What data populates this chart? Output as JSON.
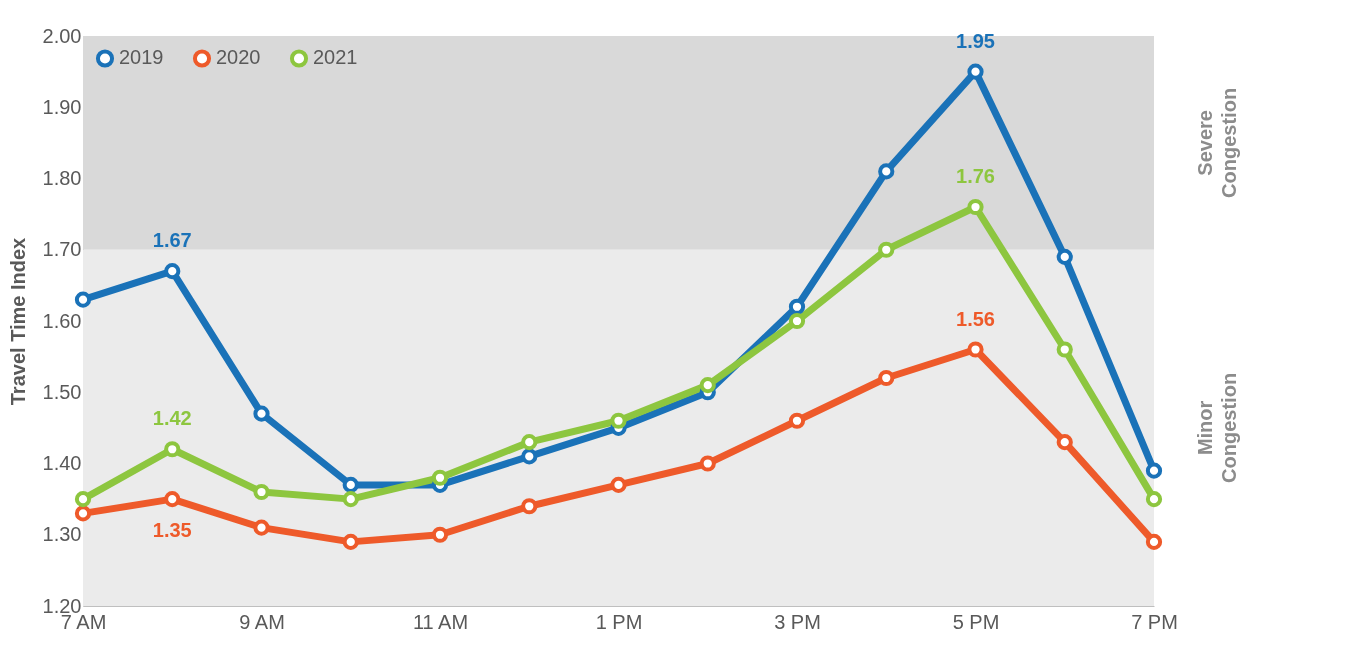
{
  "chart_data": {
    "type": "line",
    "ylabel": "Travel Time Index",
    "categories": [
      "7 AM",
      null,
      "9 AM",
      null,
      "11 AM",
      null,
      "1 PM",
      null,
      "3 PM",
      null,
      "5 PM",
      null,
      "7 PM"
    ],
    "ylim": [
      1.2,
      2.0
    ],
    "yticks": [
      {
        "value": 1.2,
        "label": "1.20"
      },
      {
        "value": 1.3,
        "label": "1.30"
      },
      {
        "value": 1.4,
        "label": "1.40"
      },
      {
        "value": 1.5,
        "label": "1.50"
      },
      {
        "value": 1.6,
        "label": "1.60"
      },
      {
        "value": 1.7,
        "label": "1.70"
      },
      {
        "value": 1.8,
        "label": "1.80"
      },
      {
        "value": 1.9,
        "label": "1.90"
      },
      {
        "value": 2.0,
        "label": "2.00"
      }
    ],
    "series": [
      {
        "name": "2019",
        "color": "#1a72b8",
        "values": [
          1.63,
          1.67,
          1.47,
          1.37,
          1.37,
          1.41,
          1.45,
          1.5,
          1.62,
          1.81,
          1.95,
          1.69,
          1.39
        ],
        "value_labels": [
          null,
          "1.67",
          null,
          null,
          null,
          null,
          null,
          null,
          null,
          null,
          "1.95",
          null,
          null
        ]
      },
      {
        "name": "2020",
        "color": "#ee5a2a",
        "values": [
          1.33,
          1.35,
          1.31,
          1.29,
          1.3,
          1.34,
          1.37,
          1.4,
          1.46,
          1.52,
          1.56,
          1.43,
          1.29
        ],
        "value_labels": [
          null,
          "1.35",
          null,
          null,
          null,
          null,
          null,
          null,
          null,
          null,
          "1.56",
          null,
          null
        ]
      },
      {
        "name": "2021",
        "color": "#8dc63f",
        "values": [
          1.35,
          1.42,
          1.36,
          1.35,
          1.38,
          1.43,
          1.46,
          1.51,
          1.6,
          1.7,
          1.76,
          1.56,
          1.35
        ],
        "value_labels": [
          null,
          "1.42",
          null,
          null,
          null,
          null,
          null,
          null,
          null,
          null,
          "1.76",
          null,
          null
        ]
      }
    ],
    "bands": [
      {
        "axis": "y",
        "from": 1.7,
        "to": 2.0,
        "label": "Severe Congestion",
        "color": "#d9d9d9"
      },
      {
        "axis": "y",
        "from": 1.2,
        "to": 1.7,
        "label": "Minor Congestion",
        "color": "#ebebeb"
      }
    ],
    "grid": false,
    "legend": "top left",
    "marker": "circle",
    "line_style": "solid"
  }
}
